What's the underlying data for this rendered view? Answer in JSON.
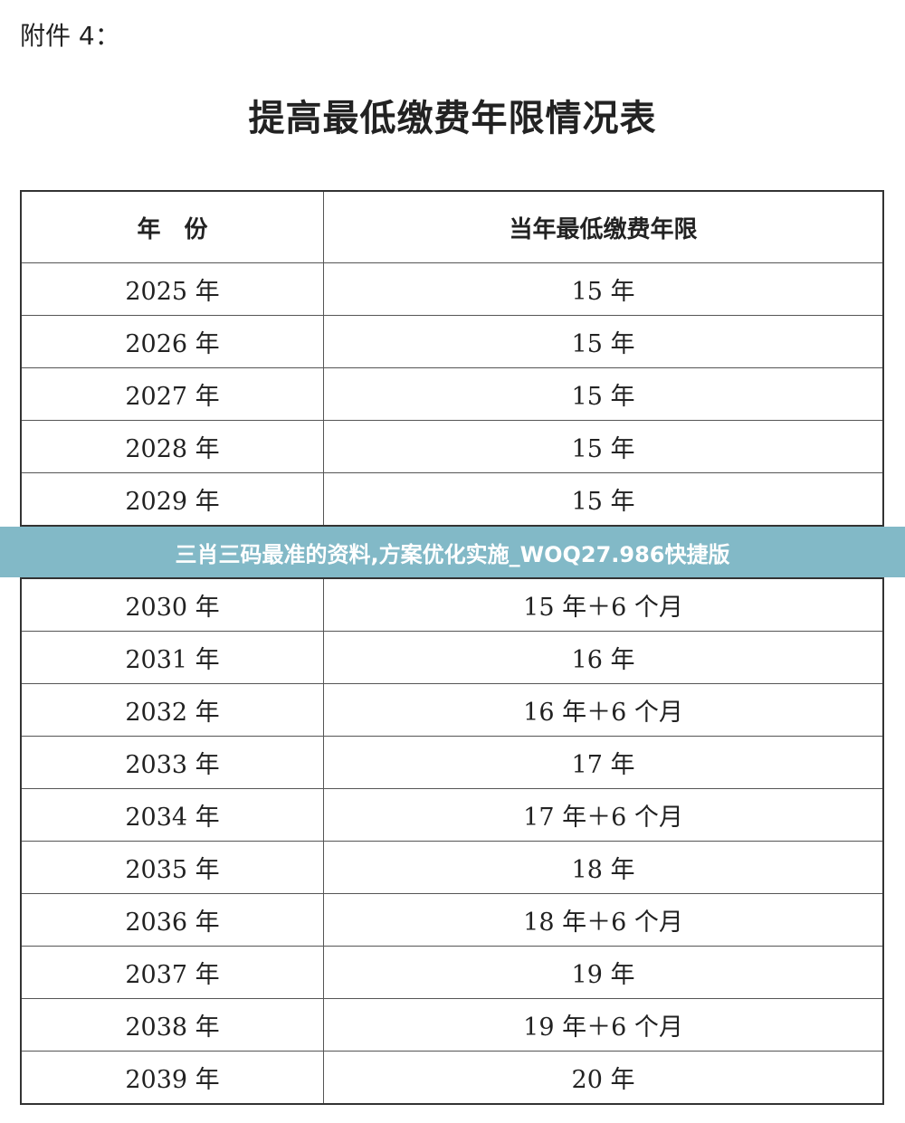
{
  "attachment_label": "附件 4：",
  "title": "提高最低缴费年限情况表",
  "table": {
    "headers": [
      "年　份",
      "当年最低缴费年限"
    ],
    "rows": [
      [
        "2025 年",
        "15 年"
      ],
      [
        "2026 年",
        "15 年"
      ],
      [
        "2027 年",
        "15 年"
      ],
      [
        "2028 年",
        "15 年"
      ],
      [
        "2029 年",
        "15 年"
      ],
      [
        "2030 年",
        "15 年＋6 个月"
      ],
      [
        "2031 年",
        "16 年"
      ],
      [
        "2032 年",
        "16 年＋6 个月"
      ],
      [
        "2033 年",
        "17 年"
      ],
      [
        "2034 年",
        "17 年＋6 个月"
      ],
      [
        "2035 年",
        "18 年"
      ],
      [
        "2036 年",
        "18 年＋6 个月"
      ],
      [
        "2037 年",
        "19 年"
      ],
      [
        "2038 年",
        "19 年＋6 个月"
      ],
      [
        "2039 年",
        "20 年"
      ]
    ]
  },
  "banner": {
    "text": "三肖三码最准的资料,方案优化实施_WOQ27.986快捷版",
    "color": "#86bcc9"
  }
}
